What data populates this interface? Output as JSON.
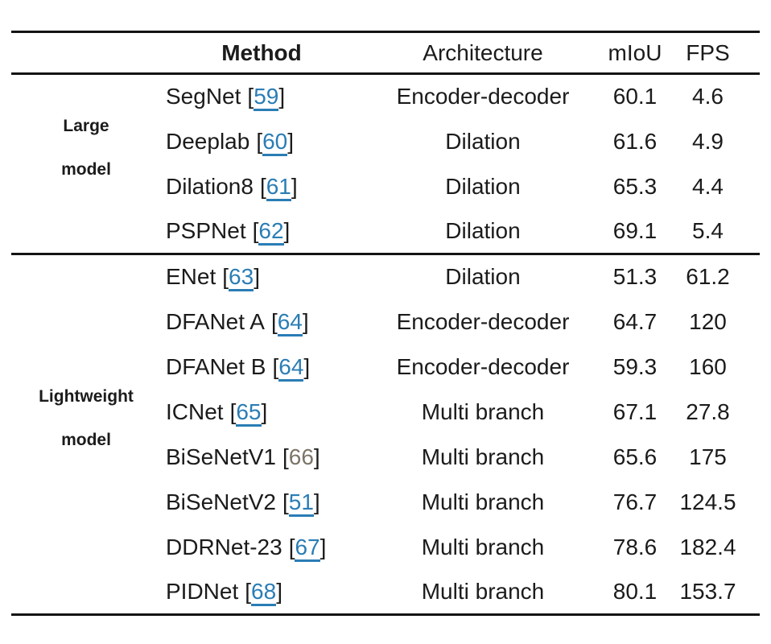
{
  "table": {
    "bracket_open": "[",
    "bracket_close": "]",
    "link_color": "#2a7db5",
    "muted_cite_color": "#7b7468",
    "rule_color": "#141414",
    "columns": {
      "method": "Method",
      "architecture": "Architecture",
      "miou": "mIoU",
      "fps": "FPS"
    },
    "groups": [
      {
        "label_lines": [
          "Large",
          "model"
        ],
        "rows": [
          {
            "name": "SegNet",
            "ref": "59",
            "ref_link": true,
            "architecture": "Encoder-decoder",
            "miou": "60.1",
            "fps": "4.6"
          },
          {
            "name": "Deeplab",
            "ref": "60",
            "ref_link": true,
            "architecture": "Dilation",
            "miou": "61.6",
            "fps": "4.9"
          },
          {
            "name": "Dilation8",
            "ref": "61",
            "ref_link": true,
            "architecture": "Dilation",
            "miou": "65.3",
            "fps": "4.4"
          },
          {
            "name": "PSPNet",
            "ref": "62",
            "ref_link": true,
            "architecture": "Dilation",
            "miou": "69.1",
            "fps": "5.4"
          }
        ]
      },
      {
        "label_lines": [
          "Lightweight",
          "model"
        ],
        "rows": [
          {
            "name": "ENet",
            "ref": "63",
            "ref_link": true,
            "architecture": "Dilation",
            "miou": "51.3",
            "fps": "61.2"
          },
          {
            "name": "DFANet A",
            "ref": "64",
            "ref_link": true,
            "architecture": "Encoder-decoder",
            "miou": "64.7",
            "fps": "120"
          },
          {
            "name": "DFANet B",
            "ref": "64",
            "ref_link": true,
            "architecture": "Encoder-decoder",
            "miou": "59.3",
            "fps": "160"
          },
          {
            "name": "ICNet",
            "ref": "65",
            "ref_link": true,
            "architecture": "Multi branch",
            "miou": "67.1",
            "fps": "27.8"
          },
          {
            "name": "BiSeNetV1",
            "ref": "66",
            "ref_link": false,
            "architecture": "Multi branch",
            "miou": "65.6",
            "fps": "175"
          },
          {
            "name": "BiSeNetV2",
            "ref": "51",
            "ref_link": true,
            "architecture": "Multi branch",
            "miou": "76.7",
            "fps": "124.5"
          },
          {
            "name": "DDRNet-23",
            "ref": "67",
            "ref_link": true,
            "architecture": "Multi branch",
            "miou": "78.6",
            "fps": "182.4"
          },
          {
            "name": "PIDNet",
            "ref": "68",
            "ref_link": true,
            "architecture": "Multi branch",
            "miou": "80.1",
            "fps": "153.7"
          }
        ]
      }
    ]
  }
}
